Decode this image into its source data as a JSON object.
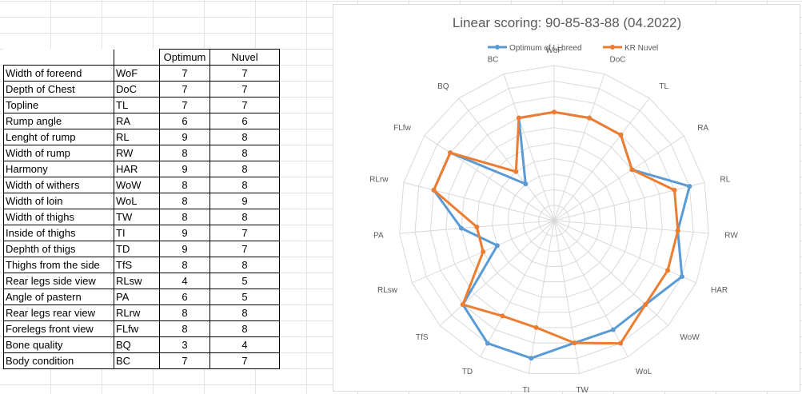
{
  "table": {
    "headers": [
      "",
      "",
      "Optimum",
      "Nuvel"
    ],
    "rows": [
      [
        "Width of foreend",
        "WoF",
        "7",
        "7"
      ],
      [
        "Depth of Chest",
        "DoC",
        "7",
        "7"
      ],
      [
        "Topline",
        "TL",
        "7",
        "7"
      ],
      [
        "Rump angle",
        "RA",
        "6",
        "6"
      ],
      [
        "Lenght of rump",
        "RL",
        "9",
        "8"
      ],
      [
        "Width of rump",
        "RW",
        "8",
        "8"
      ],
      [
        "Harmony",
        "HAR",
        "9",
        "8"
      ],
      [
        "Width of withers",
        "WoW",
        "8",
        "8"
      ],
      [
        "Width of loin",
        "WoL",
        "8",
        "9"
      ],
      [
        "Width of thighs",
        "TW",
        "8",
        "8"
      ],
      [
        "Inside of thighs",
        "TI",
        "9",
        "7"
      ],
      [
        "Dephth of thigs",
        "TD",
        "9",
        "7"
      ],
      [
        "Thighs from the side",
        "TfS",
        "8",
        "8"
      ],
      [
        "Rear legs side view",
        "RLsw",
        "4",
        "5"
      ],
      [
        "Angle of pastern",
        "PA",
        "6",
        "5"
      ],
      [
        "Rear legs rear view",
        "RLrw",
        "8",
        "8"
      ],
      [
        "Forelegs front view",
        "FLfw",
        "8",
        "8"
      ],
      [
        "Bone quality",
        "BQ",
        "3",
        "4"
      ],
      [
        "Body condition",
        "BC",
        "7",
        "7"
      ]
    ]
  },
  "chart_data": {
    "type": "radar",
    "title": "Linear scoring: 90-85-83-88 (04.2022)",
    "categories": [
      "WoF",
      "DoC",
      "TL",
      "RA",
      "RL",
      "RW",
      "HAR",
      "WoW",
      "WoL",
      "TW",
      "TI",
      "TD",
      "TfS",
      "RLsw",
      "PA",
      "RLrw",
      "FLfw",
      "BQ",
      "BC"
    ],
    "rmax": 10,
    "ring_count": 10,
    "grid": true,
    "legend_position": "top",
    "series": [
      {
        "name": "Optimum of Li breed",
        "color": "#5b9bd5",
        "values": [
          7,
          7,
          7,
          6,
          9,
          8,
          9,
          8,
          8,
          8,
          9,
          9,
          8,
          4,
          6,
          8,
          8,
          3,
          7
        ]
      },
      {
        "name": "KR Nuvel",
        "color": "#ed7d31",
        "values": [
          7,
          7,
          7,
          6,
          8,
          8,
          8,
          8,
          9,
          8,
          7,
          7,
          8,
          5,
          5,
          8,
          8,
          4,
          7
        ]
      }
    ]
  }
}
